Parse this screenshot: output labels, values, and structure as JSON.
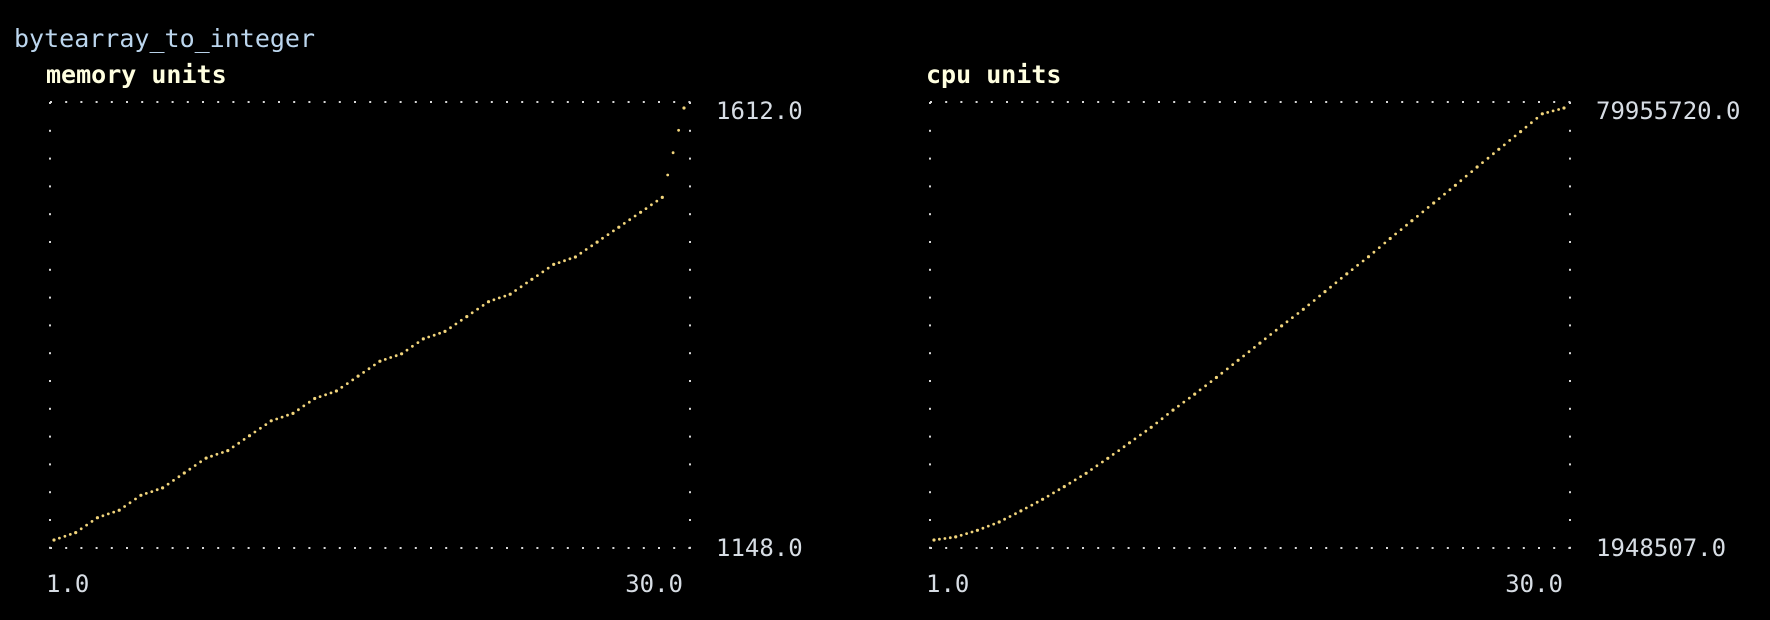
{
  "page": {
    "title": "bytearray_to_integer"
  },
  "colors": {
    "background": "#000000",
    "frame": "#d8d8d8",
    "series": "#f2d57c",
    "title": "#ffffe0",
    "page_title": "#bcd6ee",
    "tick": "#d7dde4"
  },
  "chart_data": [
    {
      "type": "scatter",
      "title": "memory units",
      "x_ticks": [
        "1.0",
        "30.0"
      ],
      "y_ticks": [
        "1612.0",
        "1148.0"
      ],
      "xlim": [
        1.0,
        30.0
      ],
      "ylim": [
        1148.0,
        1612.0
      ],
      "grid": false,
      "series": [
        {
          "x": [
            1.0,
            2.0,
            3.0,
            4.0,
            5.0,
            6.0,
            7.0,
            8.0,
            9.0,
            10.0,
            11.0,
            12.0,
            13.0,
            14.0,
            15.0,
            16.0,
            17.0,
            18.0,
            19.0,
            20.0,
            21.0,
            22.0,
            23.0,
            24.0,
            25.0,
            26.0,
            27.0,
            28.0,
            29.0,
            30.0
          ],
          "y": [
            1148,
            1156,
            1172,
            1180,
            1196,
            1204,
            1220,
            1236,
            1244,
            1260,
            1276,
            1284,
            1300,
            1308,
            1324,
            1340,
            1348,
            1364,
            1372,
            1388,
            1404,
            1412,
            1428,
            1444,
            1452,
            1468,
            1484,
            1500,
            1516,
            1612
          ]
        }
      ]
    },
    {
      "type": "scatter",
      "title": "cpu units",
      "x_ticks": [
        "1.0",
        "30.0"
      ],
      "y_ticks": [
        "79955720.0",
        "1948507.0"
      ],
      "xlim": [
        1.0,
        30.0
      ],
      "ylim": [
        1948507.0,
        79955720.0
      ],
      "grid": false,
      "series": [
        {
          "x": [
            1.0,
            2.0,
            3.0,
            4.0,
            5.0,
            6.0,
            7.0,
            8.0,
            9.0,
            10.0,
            11.0,
            12.0,
            13.0,
            14.0,
            15.0,
            16.0,
            17.0,
            18.0,
            19.0,
            20.0,
            21.0,
            22.0,
            23.0,
            24.0,
            25.0,
            26.0,
            27.0,
            28.0,
            29.0,
            30.0
          ],
          "y": [
            1948507,
            2500000,
            3700000,
            5200000,
            7200000,
            9300000,
            11600000,
            14000000,
            16700000,
            19500000,
            22300000,
            25400000,
            28300000,
            31300000,
            34400000,
            37500000,
            40600000,
            43600000,
            46800000,
            50000000,
            53100000,
            56400000,
            59600000,
            62800000,
            66000000,
            69300000,
            72500000,
            75700000,
            78900000,
            79955720
          ]
        }
      ]
    }
  ]
}
